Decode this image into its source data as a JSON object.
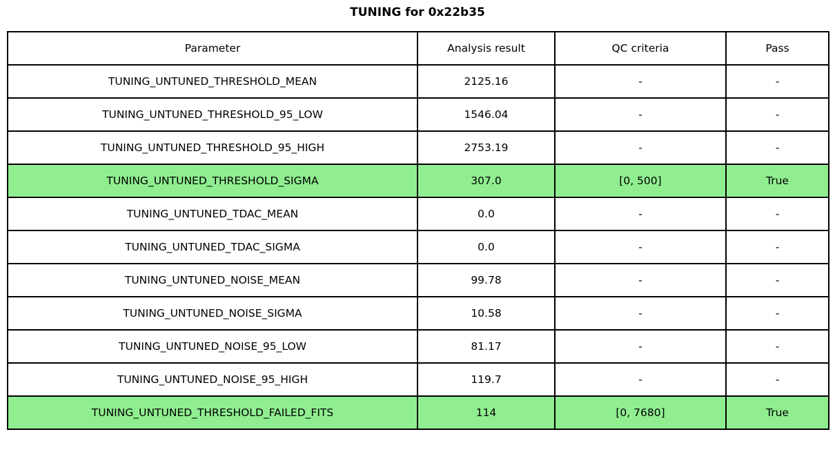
{
  "title": "TUNING for 0x22b35",
  "accent_colors": {
    "pass_row_highlight": "#90ee90",
    "border": "#000000",
    "background": "#ffffff"
  },
  "chart_data": {
    "type": "table",
    "title": "TUNING for 0x22b35",
    "headers": [
      "Parameter",
      "Analysis result",
      "QC criteria",
      "Pass"
    ],
    "rows": [
      {
        "parameter": "TUNING_UNTUNED_THRESHOLD_MEAN",
        "analysis_result": "2125.16",
        "qc_criteria": "-",
        "pass": "-",
        "highlighted": false
      },
      {
        "parameter": "TUNING_UNTUNED_THRESHOLD_95_LOW",
        "analysis_result": "1546.04",
        "qc_criteria": "-",
        "pass": "-",
        "highlighted": false
      },
      {
        "parameter": "TUNING_UNTUNED_THRESHOLD_95_HIGH",
        "analysis_result": "2753.19",
        "qc_criteria": "-",
        "pass": "-",
        "highlighted": false
      },
      {
        "parameter": "TUNING_UNTUNED_THRESHOLD_SIGMA",
        "analysis_result": "307.0",
        "qc_criteria": "[0, 500]",
        "pass": "True",
        "highlighted": true
      },
      {
        "parameter": "TUNING_UNTUNED_TDAC_MEAN",
        "analysis_result": "0.0",
        "qc_criteria": "-",
        "pass": "-",
        "highlighted": false
      },
      {
        "parameter": "TUNING_UNTUNED_TDAC_SIGMA",
        "analysis_result": "0.0",
        "qc_criteria": "-",
        "pass": "-",
        "highlighted": false
      },
      {
        "parameter": "TUNING_UNTUNED_NOISE_MEAN",
        "analysis_result": "99.78",
        "qc_criteria": "-",
        "pass": "-",
        "highlighted": false
      },
      {
        "parameter": "TUNING_UNTUNED_NOISE_SIGMA",
        "analysis_result": "10.58",
        "qc_criteria": "-",
        "pass": "-",
        "highlighted": false
      },
      {
        "parameter": "TUNING_UNTUNED_NOISE_95_LOW",
        "analysis_result": "81.17",
        "qc_criteria": "-",
        "pass": "-",
        "highlighted": false
      },
      {
        "parameter": "TUNING_UNTUNED_NOISE_95_HIGH",
        "analysis_result": "119.7",
        "qc_criteria": "-",
        "pass": "-",
        "highlighted": false
      },
      {
        "parameter": "TUNING_UNTUNED_THRESHOLD_FAILED_FITS",
        "analysis_result": "114",
        "qc_criteria": "[0, 7680]",
        "pass": "True",
        "highlighted": true
      }
    ]
  }
}
